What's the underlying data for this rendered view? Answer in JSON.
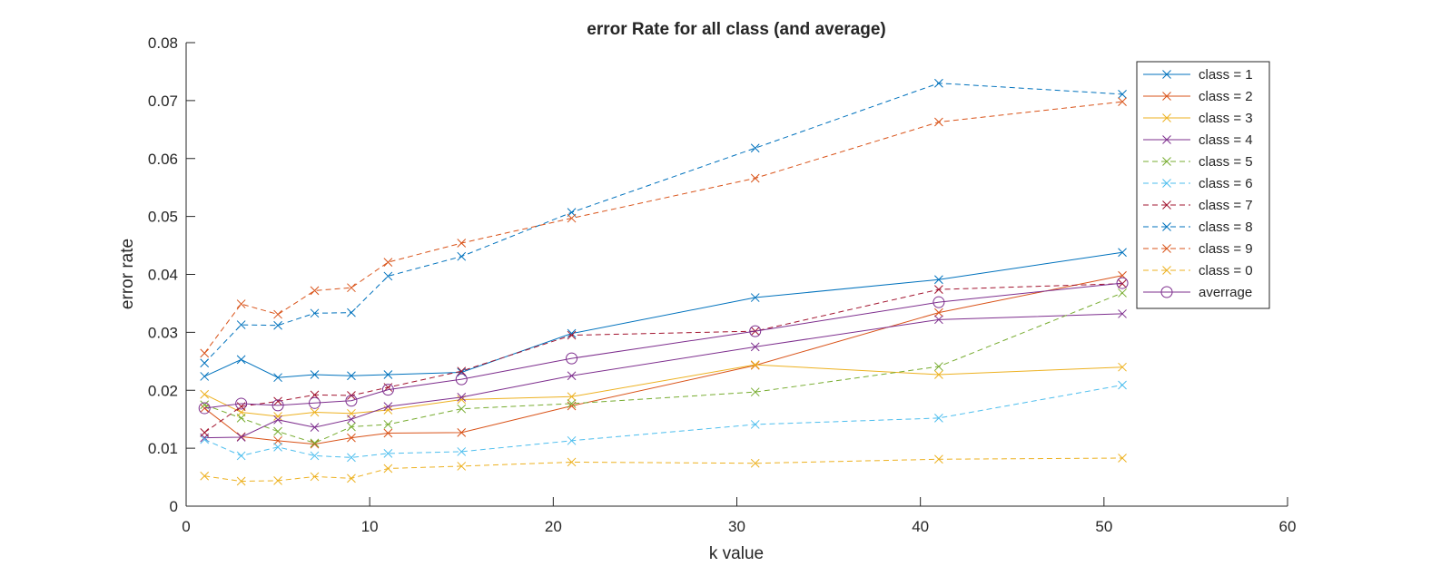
{
  "chart_data": {
    "type": "line",
    "title": "error Rate for all class (and average)",
    "xlabel": "k value",
    "ylabel": "error rate",
    "xlim": [
      0,
      60
    ],
    "ylim": [
      0,
      0.08
    ],
    "xticks": [
      "0",
      "10",
      "20",
      "30",
      "40",
      "50",
      "60"
    ],
    "yticks": [
      "0",
      "0.01",
      "0.02",
      "0.03",
      "0.04",
      "0.05",
      "0.06",
      "0.07",
      "0.08"
    ],
    "grid": false,
    "legend_position": "top-right",
    "x": [
      1,
      3,
      5,
      7,
      9,
      11,
      15,
      21,
      31,
      41,
      51
    ],
    "series": [
      {
        "name": "class = 1",
        "color": "#0072BD",
        "dash": "solid",
        "marker": "x",
        "values": [
          0.0224,
          0.0253,
          0.0222,
          0.0227,
          0.0225,
          0.0227,
          0.0231,
          0.0298,
          0.036,
          0.0391,
          0.0438
        ]
      },
      {
        "name": "class = 2",
        "color": "#D95319",
        "dash": "solid",
        "marker": "x",
        "values": [
          0.0169,
          0.012,
          0.0113,
          0.0107,
          0.0118,
          0.0126,
          0.0127,
          0.0173,
          0.0243,
          0.0334,
          0.0398
        ]
      },
      {
        "name": "class = 3",
        "color": "#EDB120",
        "dash": "solid",
        "marker": "x",
        "values": [
          0.0193,
          0.0162,
          0.0155,
          0.0162,
          0.016,
          0.0166,
          0.0184,
          0.0189,
          0.0244,
          0.0227,
          0.024
        ]
      },
      {
        "name": "class = 4",
        "color": "#7E2F8E",
        "dash": "solid",
        "marker": "x",
        "values": [
          0.0118,
          0.0119,
          0.0149,
          0.0136,
          0.015,
          0.0172,
          0.0188,
          0.0225,
          0.0275,
          0.0322,
          0.0332
        ]
      },
      {
        "name": "class = 5",
        "color": "#77AC30",
        "dash": "dashed",
        "marker": "x",
        "values": [
          0.0175,
          0.0152,
          0.0129,
          0.0109,
          0.0137,
          0.0141,
          0.0168,
          0.0177,
          0.0197,
          0.0241,
          0.0368
        ]
      },
      {
        "name": "class = 6",
        "color": "#4DBEEE",
        "dash": "dashed",
        "marker": "x",
        "values": [
          0.0115,
          0.0087,
          0.0102,
          0.0087,
          0.0084,
          0.0091,
          0.0094,
          0.0113,
          0.0141,
          0.0152,
          0.0209
        ]
      },
      {
        "name": "class = 7",
        "color": "#A2142F",
        "dash": "dashed",
        "marker": "x",
        "values": [
          0.0127,
          0.0172,
          0.0181,
          0.0192,
          0.0191,
          0.0205,
          0.0233,
          0.0295,
          0.0302,
          0.0374,
          0.0384
        ]
      },
      {
        "name": "class = 8",
        "color": "#0072BD",
        "dash": "dashed",
        "marker": "x",
        "values": [
          0.0247,
          0.0313,
          0.0312,
          0.0333,
          0.0334,
          0.0397,
          0.0431,
          0.0507,
          0.0618,
          0.073,
          0.0711
        ]
      },
      {
        "name": "class = 9",
        "color": "#D95319",
        "dash": "dashed",
        "marker": "x",
        "values": [
          0.0264,
          0.0349,
          0.0331,
          0.0372,
          0.0377,
          0.0421,
          0.0454,
          0.0497,
          0.0566,
          0.0663,
          0.0698
        ]
      },
      {
        "name": "class = 0",
        "color": "#EDB120",
        "dash": "dashed",
        "marker": "x",
        "values": [
          0.0052,
          0.0043,
          0.0044,
          0.0051,
          0.0048,
          0.0065,
          0.0069,
          0.0076,
          0.0074,
          0.0081,
          0.0083
        ]
      },
      {
        "name": "averrage",
        "color": "#7E2F8E",
        "dash": "solid",
        "marker": "o",
        "values": [
          0.0169,
          0.0177,
          0.0174,
          0.0178,
          0.0182,
          0.0201,
          0.0219,
          0.0255,
          0.0302,
          0.0352,
          0.0385
        ]
      }
    ]
  }
}
